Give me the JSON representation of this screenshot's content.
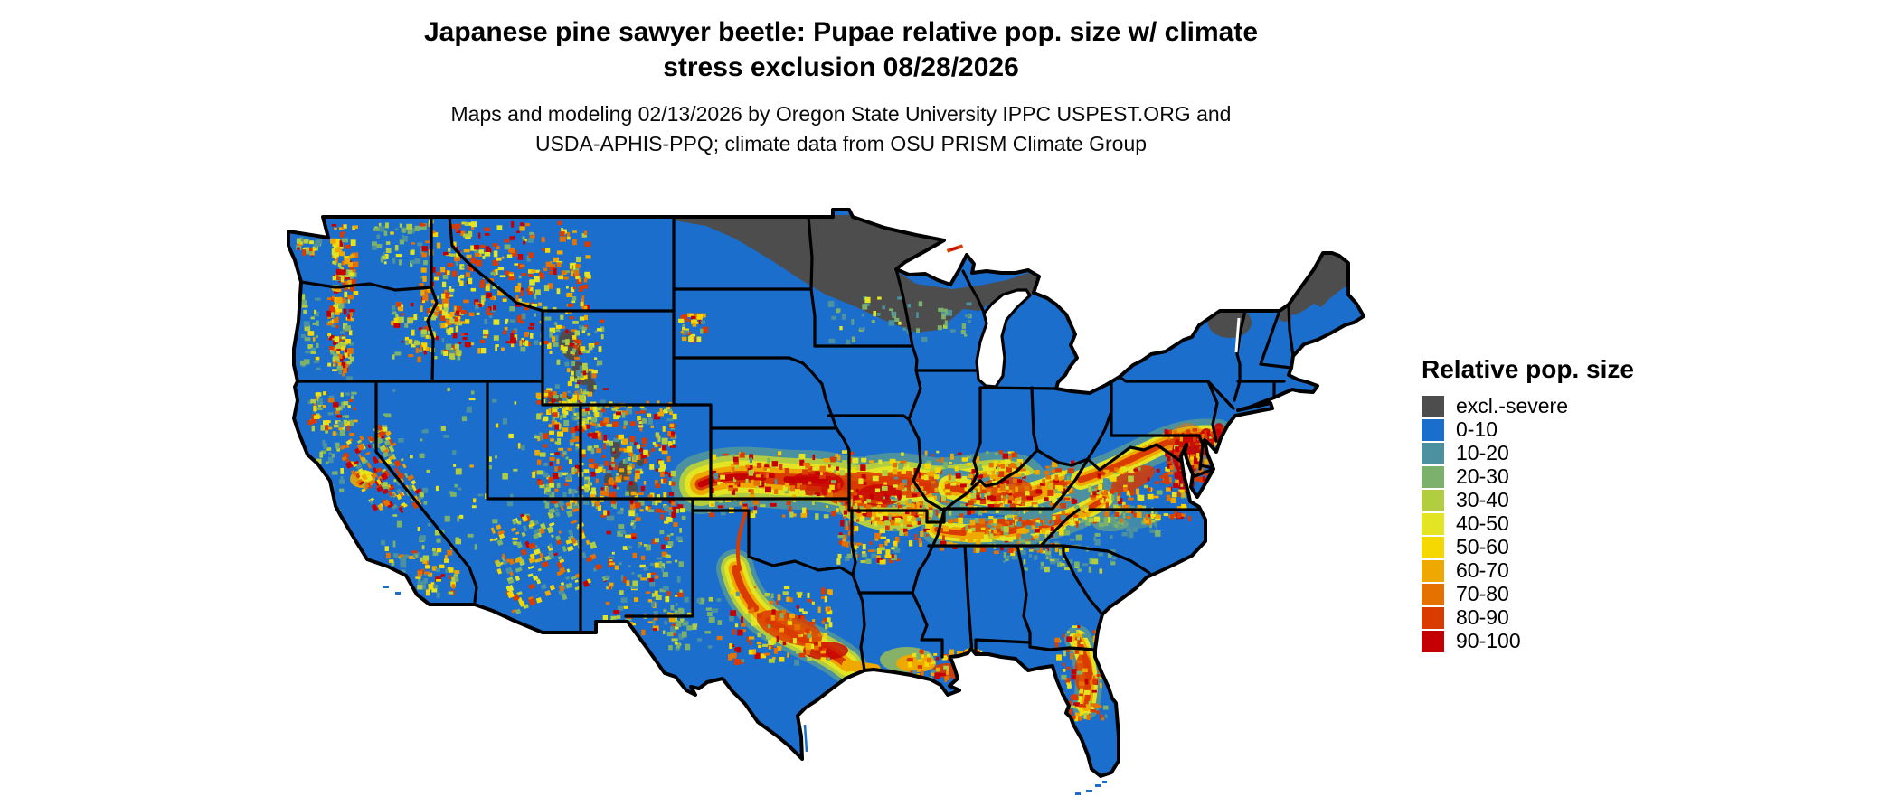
{
  "figure": {
    "title_line1": "Japanese pine sawyer beetle: Pupae relative pop. size w/ climate",
    "title_line2": "stress exclusion 08/28/2026",
    "subtitle_line1": "Maps and modeling 02/13/2026 by Oregon State University IPPC USPEST.ORG and",
    "subtitle_line2": "USDA-APHIS-PPQ; climate data from OSU PRISM Climate Group"
  },
  "legend": {
    "title": "Relative pop. size",
    "items": [
      {
        "label": "excl.-severe",
        "color": "#4D4D4D"
      },
      {
        "label": "0-10",
        "color": "#1C6ECC"
      },
      {
        "label": "10-20",
        "color": "#4B91A0"
      },
      {
        "label": "20-30",
        "color": "#7CB16C"
      },
      {
        "label": "30-40",
        "color": "#B2CD3F"
      },
      {
        "label": "40-50",
        "color": "#E3E522"
      },
      {
        "label": "50-60",
        "color": "#F5D800"
      },
      {
        "label": "60-70",
        "color": "#EFA800"
      },
      {
        "label": "70-80",
        "color": "#E57200"
      },
      {
        "label": "80-90",
        "color": "#D93B00"
      },
      {
        "label": "90-100",
        "color": "#C50003"
      }
    ]
  },
  "map": {
    "state_border_color": "#000000",
    "water_color": "#FFFFFF"
  }
}
